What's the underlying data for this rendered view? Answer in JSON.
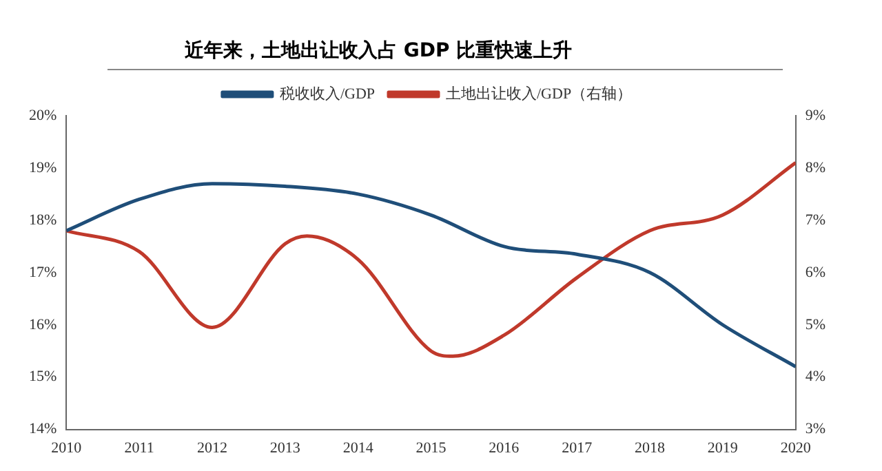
{
  "chart_data": {
    "type": "line",
    "title": "近年来，土地出让收入占 GDP 比重快速上升",
    "xlim": [
      2010,
      2020
    ],
    "xticks": [
      2010,
      2011,
      2012,
      2013,
      2014,
      2015,
      2016,
      2017,
      2018,
      2019,
      2020
    ],
    "ylim": [
      14,
      20
    ],
    "yticks": [
      {
        "value": 14,
        "label": "14%"
      },
      {
        "value": 15,
        "label": "15%"
      },
      {
        "value": 16,
        "label": "16%"
      },
      {
        "value": 17,
        "label": "17%"
      },
      {
        "value": 18,
        "label": "18%"
      },
      {
        "value": 19,
        "label": "19%"
      },
      {
        "value": 20,
        "label": "20%"
      }
    ],
    "y2lim": [
      3,
      9
    ],
    "y2ticks": [
      {
        "value": 3,
        "label": "3%"
      },
      {
        "value": 4,
        "label": "4%"
      },
      {
        "value": 5,
        "label": "5%"
      },
      {
        "value": 6,
        "label": "6%"
      },
      {
        "value": 7,
        "label": "7%"
      },
      {
        "value": 8,
        "label": "8%"
      },
      {
        "value": 9,
        "label": "9%"
      }
    ],
    "series": [
      {
        "name": "税收收入/GDP",
        "color": "#1f4e79",
        "x": [
          2010,
          2011,
          2012,
          2013,
          2014,
          2015,
          2016,
          2017,
          2018,
          2019,
          2020
        ],
        "values": [
          17.8,
          18.4,
          18.7,
          18.65,
          18.5,
          18.1,
          17.5,
          17.35,
          17.0,
          16.0,
          15.2
        ]
      },
      {
        "name": "土地出让收入/GDP（右轴）",
        "color": "#c0392b",
        "axis": "y2",
        "x": [
          2010,
          2011,
          2012,
          2013,
          2013.3,
          2014,
          2015,
          2015.3,
          2016,
          2017,
          2018,
          2019,
          2020
        ],
        "values": [
          6.8,
          6.4,
          4.95,
          6.55,
          6.7,
          6.25,
          4.5,
          4.4,
          4.8,
          5.9,
          6.8,
          7.1,
          8.1
        ]
      }
    ],
    "grid": false,
    "legend": "top",
    "marker": "none",
    "line_style": "solid"
  }
}
